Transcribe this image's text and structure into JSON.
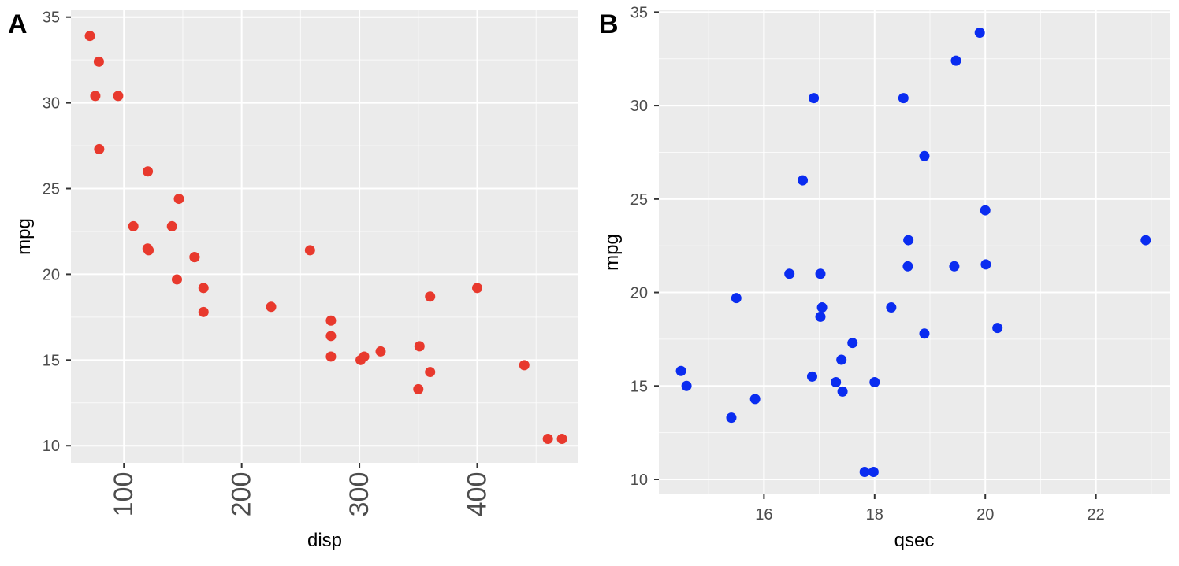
{
  "panels": {
    "a": {
      "tag": "A"
    },
    "b": {
      "tag": "B"
    }
  },
  "chart_data": [
    {
      "type": "scatter",
      "panel": "A",
      "title": "",
      "xlabel": "disp",
      "ylabel": "mpg",
      "xlim": [
        55,
        486
      ],
      "ylim": [
        9,
        35.4
      ],
      "x_ticks": [
        100,
        200,
        300,
        400
      ],
      "x_tick_labels": [
        "100",
        "200",
        "300",
        "400"
      ],
      "y_ticks": [
        10,
        15,
        20,
        25,
        30,
        35
      ],
      "y_tick_labels": [
        "10",
        "15",
        "20",
        "25",
        "30",
        "35"
      ],
      "x_tick_label_rotation": -90,
      "grid": true,
      "point_color": "#e8392d",
      "points": [
        {
          "x": 160,
          "y": 21
        },
        {
          "x": 160,
          "y": 21
        },
        {
          "x": 108,
          "y": 22.8
        },
        {
          "x": 258,
          "y": 21.4
        },
        {
          "x": 360,
          "y": 18.7
        },
        {
          "x": 225,
          "y": 18.1
        },
        {
          "x": 360,
          "y": 14.3
        },
        {
          "x": 146.7,
          "y": 24.4
        },
        {
          "x": 140.8,
          "y": 22.8
        },
        {
          "x": 167.6,
          "y": 19.2
        },
        {
          "x": 167.6,
          "y": 17.8
        },
        {
          "x": 275.8,
          "y": 16.4
        },
        {
          "x": 275.8,
          "y": 17.3
        },
        {
          "x": 275.8,
          "y": 15.2
        },
        {
          "x": 472,
          "y": 10.4
        },
        {
          "x": 460,
          "y": 10.4
        },
        {
          "x": 440,
          "y": 14.7
        },
        {
          "x": 78.7,
          "y": 32.4
        },
        {
          "x": 75.7,
          "y": 30.4
        },
        {
          "x": 71.1,
          "y": 33.9
        },
        {
          "x": 120.1,
          "y": 21.5
        },
        {
          "x": 318,
          "y": 15.5
        },
        {
          "x": 304,
          "y": 15.2
        },
        {
          "x": 350,
          "y": 13.3
        },
        {
          "x": 400,
          "y": 19.2
        },
        {
          "x": 79,
          "y": 27.3
        },
        {
          "x": 120.3,
          "y": 26
        },
        {
          "x": 95.1,
          "y": 30.4
        },
        {
          "x": 351,
          "y": 15.8
        },
        {
          "x": 145,
          "y": 19.7
        },
        {
          "x": 301,
          "y": 15
        },
        {
          "x": 121,
          "y": 21.4
        }
      ]
    },
    {
      "type": "scatter",
      "panel": "B",
      "title": "",
      "xlabel": "qsec",
      "ylabel": "mpg",
      "xlim": [
        14.1,
        23.33
      ],
      "ylim": [
        9.2,
        35.1
      ],
      "x_ticks": [
        16,
        18,
        20,
        22
      ],
      "x_tick_labels": [
        "16",
        "18",
        "20",
        "22"
      ],
      "y_ticks": [
        10,
        15,
        20,
        25,
        30,
        35
      ],
      "y_tick_labels": [
        "10",
        "15",
        "20",
        "25",
        "30",
        "35"
      ],
      "x_tick_label_rotation": 0,
      "grid": true,
      "point_color": "#0a2cf0",
      "points": [
        {
          "x": 16.46,
          "y": 21
        },
        {
          "x": 17.02,
          "y": 21
        },
        {
          "x": 18.61,
          "y": 22.8
        },
        {
          "x": 19.44,
          "y": 21.4
        },
        {
          "x": 17.02,
          "y": 18.7
        },
        {
          "x": 20.22,
          "y": 18.1
        },
        {
          "x": 15.84,
          "y": 14.3
        },
        {
          "x": 20,
          "y": 24.4
        },
        {
          "x": 22.9,
          "y": 22.8
        },
        {
          "x": 18.3,
          "y": 19.2
        },
        {
          "x": 18.9,
          "y": 17.8
        },
        {
          "x": 17.4,
          "y": 16.4
        },
        {
          "x": 17.6,
          "y": 17.3
        },
        {
          "x": 18,
          "y": 15.2
        },
        {
          "x": 17.98,
          "y": 10.4
        },
        {
          "x": 17.82,
          "y": 10.4
        },
        {
          "x": 17.42,
          "y": 14.7
        },
        {
          "x": 19.47,
          "y": 32.4
        },
        {
          "x": 18.52,
          "y": 30.4
        },
        {
          "x": 19.9,
          "y": 33.9
        },
        {
          "x": 20.01,
          "y": 21.5
        },
        {
          "x": 16.87,
          "y": 15.5
        },
        {
          "x": 17.3,
          "y": 15.2
        },
        {
          "x": 15.41,
          "y": 13.3
        },
        {
          "x": 17.05,
          "y": 19.2
        },
        {
          "x": 18.9,
          "y": 27.3
        },
        {
          "x": 16.7,
          "y": 26
        },
        {
          "x": 16.9,
          "y": 30.4
        },
        {
          "x": 14.5,
          "y": 15.8
        },
        {
          "x": 15.5,
          "y": 19.7
        },
        {
          "x": 14.6,
          "y": 15
        },
        {
          "x": 18.6,
          "y": 21.4
        }
      ]
    }
  ]
}
